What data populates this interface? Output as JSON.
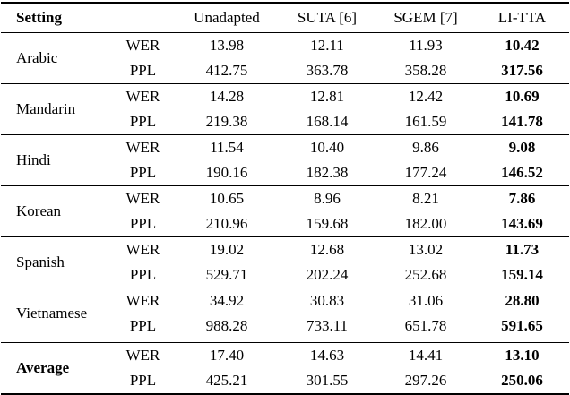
{
  "table": {
    "header": {
      "setting": "Setting",
      "methods": [
        "Unadapted",
        "SUTA [6]",
        "SGEM [7]",
        "LI-TTA"
      ]
    },
    "metrics": [
      "WER",
      "PPL"
    ],
    "groups": [
      {
        "setting": "Arabic",
        "wer": [
          "13.98",
          "12.11",
          "11.93",
          "10.42"
        ],
        "ppl": [
          "412.75",
          "363.78",
          "358.28",
          "317.56"
        ]
      },
      {
        "setting": "Mandarin",
        "wer": [
          "14.28",
          "12.81",
          "12.42",
          "10.69"
        ],
        "ppl": [
          "219.38",
          "168.14",
          "161.59",
          "141.78"
        ]
      },
      {
        "setting": "Hindi",
        "wer": [
          "11.54",
          "10.40",
          "9.86",
          "9.08"
        ],
        "ppl": [
          "190.16",
          "182.38",
          "177.24",
          "146.52"
        ]
      },
      {
        "setting": "Korean",
        "wer": [
          "10.65",
          "8.96",
          "8.21",
          "7.86"
        ],
        "ppl": [
          "210.96",
          "159.68",
          "182.00",
          "143.69"
        ]
      },
      {
        "setting": "Spanish",
        "wer": [
          "19.02",
          "12.68",
          "13.02",
          "11.73"
        ],
        "ppl": [
          "529.71",
          "202.24",
          "252.68",
          "159.14"
        ]
      },
      {
        "setting": "Vietnamese",
        "wer": [
          "34.92",
          "30.83",
          "31.06",
          "28.80"
        ],
        "ppl": [
          "988.28",
          "733.11",
          "651.78",
          "591.65"
        ]
      },
      {
        "setting": "Average",
        "wer": [
          "17.40",
          "14.63",
          "14.41",
          "13.10"
        ],
        "ppl": [
          "425.21",
          "301.55",
          "297.26",
          "250.06"
        ]
      }
    ]
  }
}
